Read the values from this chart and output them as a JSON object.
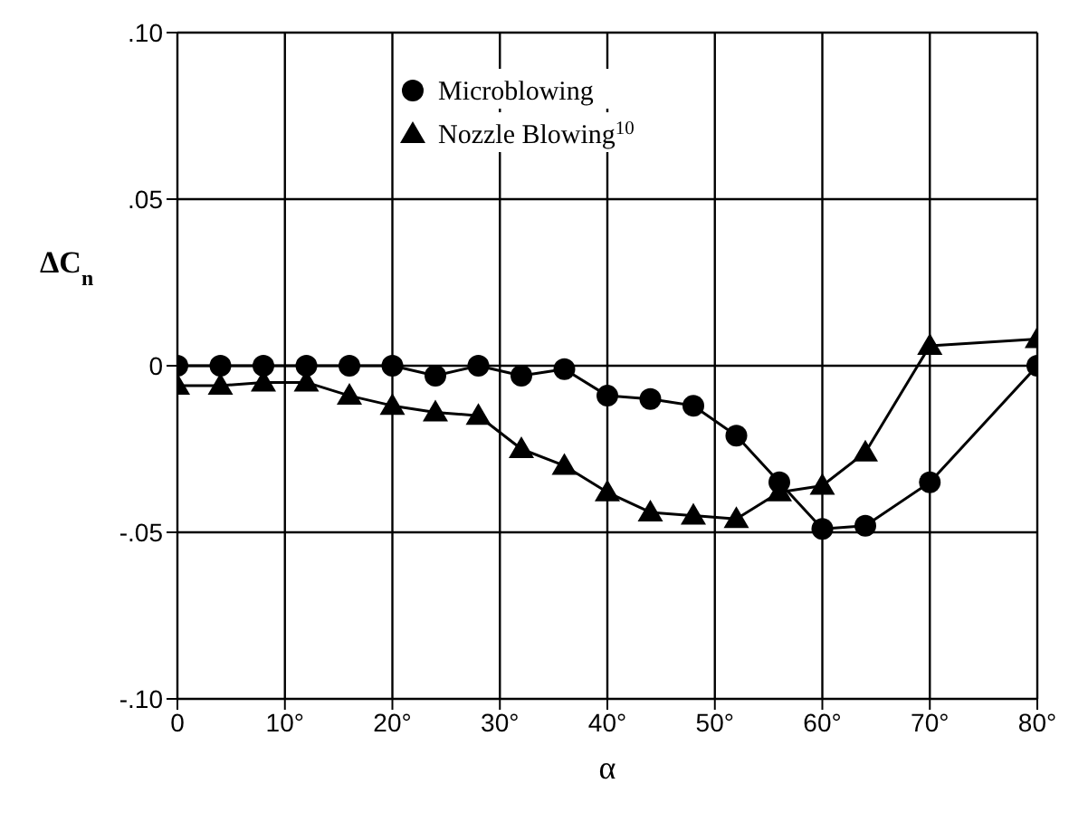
{
  "chart_data": {
    "type": "line",
    "xlabel": "α",
    "ylabel": "ΔC$_{n}$",
    "xlim": [
      0,
      80
    ],
    "xticks": [
      0,
      {
        "value": 10,
        "label": "10°"
      },
      {
        "value": 20,
        "label": "20°"
      },
      {
        "value": 30,
        "label": "30°"
      },
      {
        "value": 40,
        "label": "40°"
      },
      {
        "value": 50,
        "label": "50°"
      },
      {
        "value": 60,
        "label": "60°"
      },
      {
        "value": 70,
        "label": "70°"
      },
      {
        "value": 80,
        "label": "80°"
      }
    ],
    "ylim": [
      -0.1,
      0.1
    ],
    "yticks": [
      {
        "value": -0.1,
        "label": "-.10"
      },
      {
        "value": -0.05,
        "label": "-.05"
      },
      0,
      {
        "value": 0.05,
        "label": ".05"
      },
      {
        "value": 0.1,
        "label": ".10"
      }
    ],
    "grid": true,
    "legend": "top",
    "x": [
      0,
      4,
      8,
      12,
      16,
      20,
      24,
      28,
      32,
      36,
      40,
      44,
      48,
      52,
      56,
      60,
      64,
      70,
      80
    ],
    "series": [
      {
        "name": "Microblowing",
        "color": "#000000",
        "marker": "circle",
        "values": [
          0,
          0,
          0,
          0,
          0,
          0,
          -0.003,
          0,
          -0.003,
          -0.001,
          -0.009,
          -0.01,
          -0.012,
          -0.021,
          -0.035,
          -0.049,
          -0.048,
          -0.035,
          0
        ]
      },
      {
        "name": "Nozzle Blowing$^{10}$",
        "color": "#000000",
        "marker": "triangle",
        "values": [
          -0.006,
          -0.006,
          -0.005,
          -0.005,
          -0.009,
          -0.012,
          -0.014,
          -0.015,
          -0.025,
          -0.03,
          -0.038,
          -0.044,
          -0.045,
          -0.046,
          -0.038,
          -0.036,
          -0.026,
          0.006,
          0.008
        ]
      }
    ]
  }
}
